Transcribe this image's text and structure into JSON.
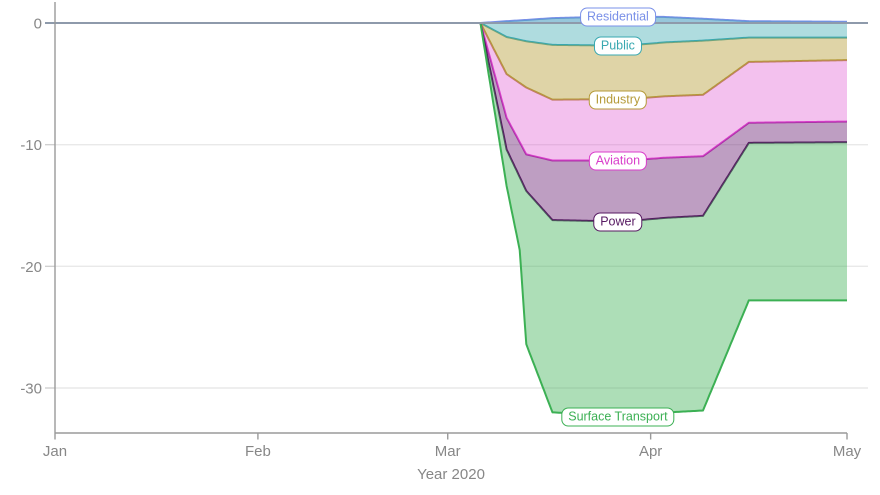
{
  "chart_data": {
    "type": "area",
    "stacked": true,
    "title": "",
    "x_axis": {
      "title": "Year 2020",
      "unit": "day of year (0 = Jan 1, 2020)",
      "ticks": [
        {
          "label": "Jan",
          "day": 0
        },
        {
          "label": "Feb",
          "day": 31
        },
        {
          "label": "Mar",
          "day": 60
        },
        {
          "label": "Apr",
          "day": 91
        },
        {
          "label": "May",
          "day": 121
        }
      ],
      "range_days": [
        0,
        124.2
      ]
    },
    "y_axis": {
      "title": "",
      "ticks": [
        {
          "label": "0",
          "value": 0
        },
        {
          "label": "-10",
          "value": -10
        },
        {
          "label": "-20",
          "value": -20
        },
        {
          "label": "-30",
          "value": -30
        }
      ],
      "range": [
        -33.7,
        1.7
      ],
      "zeroline": true
    },
    "grid": "horizontal",
    "legend": "inline-labels-on-lines",
    "label_day": 86,
    "series": [
      {
        "name": "Residential",
        "stroke": "#7a90e8",
        "fill": "rgba(122,144,232,0.30)",
        "points": [
          [
            0,
            0
          ],
          [
            65,
            0
          ],
          [
            69,
            0.15
          ],
          [
            72,
            0.25
          ],
          [
            76,
            0.4
          ],
          [
            83,
            0.5
          ],
          [
            93,
            0.5
          ],
          [
            99,
            0.35
          ],
          [
            106,
            0.15
          ],
          [
            121,
            0.1
          ]
        ]
      },
      {
        "name": "Public",
        "stroke": "#38a8b0",
        "fill": "rgba(56,168,176,0.40)",
        "points": [
          [
            0,
            0
          ],
          [
            65,
            0
          ],
          [
            69,
            -1.3
          ],
          [
            72,
            -1.75
          ],
          [
            76,
            -2.2
          ],
          [
            86,
            -2.4
          ],
          [
            92,
            -2.15
          ],
          [
            99,
            -1.8
          ],
          [
            106,
            -1.35
          ],
          [
            121,
            -1.3
          ]
        ]
      },
      {
        "name": "Industry",
        "stroke": "#b59a38",
        "fill": "rgba(185,160,60,0.45)",
        "points": [
          [
            0,
            0
          ],
          [
            65,
            0
          ],
          [
            69,
            -3.05
          ],
          [
            72,
            -3.8
          ],
          [
            76,
            -4.5
          ],
          [
            86,
            -4.4
          ],
          [
            99,
            -4.45
          ],
          [
            106,
            -2.0
          ],
          [
            121,
            -1.85
          ]
        ]
      },
      {
        "name": "Aviation",
        "stroke": "#d93ecb",
        "fill": "rgba(217,62,203,0.32)",
        "points": [
          [
            0,
            0
          ],
          [
            65,
            0
          ],
          [
            69,
            -3.6
          ],
          [
            72,
            -5.5
          ],
          [
            76,
            -5.0
          ],
          [
            86,
            -5.05
          ],
          [
            99,
            -5.05
          ],
          [
            106,
            -5.0
          ],
          [
            121,
            -5.05
          ]
        ]
      },
      {
        "name": "Power",
        "stroke": "#571a62",
        "fill": "rgba(110,40,120,0.45)",
        "points": [
          [
            0,
            0
          ],
          [
            65,
            0
          ],
          [
            69,
            -2.6
          ],
          [
            72,
            -3.0
          ],
          [
            76,
            -4.9
          ],
          [
            86,
            -5.0
          ],
          [
            99,
            -4.9
          ],
          [
            106,
            -1.65
          ],
          [
            121,
            -1.7
          ]
        ]
      },
      {
        "name": "Surface Transport",
        "stroke": "#3cb054",
        "fill": "rgba(60,176,84,0.42)",
        "points": [
          [
            0,
            0
          ],
          [
            65,
            0
          ],
          [
            69,
            -3.0
          ],
          [
            71,
            -6.0
          ],
          [
            72,
            -12.6
          ],
          [
            76,
            -15.8
          ],
          [
            86,
            -16.0
          ],
          [
            99,
            -16.0
          ],
          [
            106,
            -12.95
          ],
          [
            121,
            -13.0
          ]
        ]
      }
    ],
    "colors": {
      "zero_line": "#8e9aab",
      "axis_line": "#9a9a9a",
      "grid_line": "#e9e9e9",
      "minor_tick": "#d0d0d0",
      "tick_text": "#878787"
    }
  }
}
